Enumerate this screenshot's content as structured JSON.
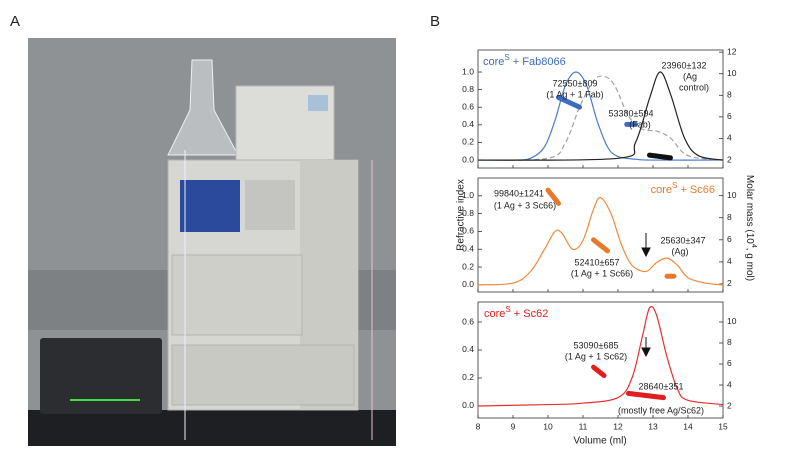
{
  "figure": {
    "panel_labels": [
      "A",
      "B"
    ],
    "xlabel": "Volume (ml)",
    "ylabel": "Refractive index",
    "y2label": [
      "Molar mass (10",
      "4",
      ", g mol)"
    ]
  },
  "chart_data": [
    {
      "type": "line",
      "title": [
        "core",
        "S",
        " + Fab8066"
      ],
      "title_color": "#3d6cc0",
      "xlim": [
        8,
        15
      ],
      "xticks": [
        8,
        9,
        10,
        11,
        12,
        13,
        14,
        15
      ],
      "ylim": [
        -0.09,
        1.25
      ],
      "yticks": [
        {
          "value": 0,
          "label": "0.0"
        },
        {
          "value": 0.2,
          "label": "0.2"
        },
        {
          "value": 0.4,
          "label": "0.4"
        },
        {
          "value": 0.6,
          "label": "0.6"
        },
        {
          "value": 0.8,
          "label": "0.8"
        },
        {
          "value": 1,
          "label": "1.0"
        }
      ],
      "y2lim": [
        1.26,
        12.2
      ],
      "y2ticks": [
        2,
        4,
        6,
        8,
        10,
        12
      ],
      "series": [
        {
          "color": "#4a7cc9",
          "x": [
            8,
            9,
            9.5,
            9.9,
            10.2,
            10.5,
            10.8,
            11.1,
            11.4,
            11.7,
            12,
            12.5,
            13,
            15
          ],
          "values": [
            0,
            0,
            0.02,
            0.15,
            0.45,
            0.85,
            1.0,
            0.85,
            0.45,
            0.15,
            0.04,
            0.01,
            0,
            0
          ]
        },
        {
          "color": "#a0a0a0",
          "dashed": true,
          "x": [
            8,
            10,
            10.5,
            10.9,
            11.3,
            11.6,
            11.9,
            12.3,
            12.7,
            13.1,
            13.5,
            14,
            15
          ],
          "values": [
            0,
            0.02,
            0.2,
            0.6,
            0.9,
            0.95,
            0.85,
            0.5,
            0.35,
            0.33,
            0.25,
            0.05,
            0
          ]
        },
        {
          "color": "#222222",
          "x": [
            8,
            12,
            12.5,
            12.9,
            13.2,
            13.5,
            13.9,
            14.3,
            15
          ],
          "values": [
            0,
            0.02,
            0.2,
            0.7,
            1.0,
            0.75,
            0.25,
            0.05,
            0
          ]
        },
        {
          "color": "#3d6cc0",
          "axis": "y2",
          "x": [
            10.3,
            10.9
          ],
          "values": [
            7.8,
            6.9
          ]
        },
        {
          "color": "#3d6cc0",
          "axis": "y2",
          "x": [
            12.25,
            12.5
          ],
          "values": [
            5.3,
            5.3
          ]
        },
        {
          "color": "#111111",
          "axis": "y2",
          "x": [
            12.9,
            13.5
          ],
          "values": [
            2.45,
            2.2
          ]
        }
      ],
      "annotations": [
        {
          "text": "72550±809",
          "color": "#3d6cc0"
        },
        {
          "text": "(1 Ag + 1 Fab)",
          "color": "#3d6cc0"
        },
        {
          "text": "53380±594",
          "color": "#3d6cc0"
        },
        {
          "text": "(Fab)",
          "color": "#3d6cc0"
        },
        {
          "text": "23960±132",
          "color": "#111111"
        },
        {
          "text": "(Ag",
          "color": "#111111"
        },
        {
          "text": "control)",
          "color": "#111111"
        }
      ]
    },
    {
      "type": "line",
      "title": [
        "core",
        "S",
        " + Sc66"
      ],
      "title_color": "#e8792a",
      "xlim": [
        8,
        15
      ],
      "xticks": [
        8,
        9,
        10,
        11,
        12,
        13,
        14,
        15
      ],
      "ylim": [
        -0.08,
        1.2
      ],
      "yticks": [
        {
          "value": 0,
          "label": "0.0"
        },
        {
          "value": 0.2,
          "label": "0.2"
        },
        {
          "value": 0.4,
          "label": "0.4"
        },
        {
          "value": 0.6,
          "label": "0.6"
        },
        {
          "value": 0.8,
          "label": "0.8"
        },
        {
          "value": 1,
          "label": "1.0"
        }
      ],
      "y2lim": [
        1.27,
        11.6
      ],
      "y2ticks": [
        2,
        4,
        6,
        8,
        10
      ],
      "series": [
        {
          "color": "#f08a3c",
          "x": [
            8,
            9,
            9.5,
            9.9,
            10.2,
            10.4,
            10.7,
            11,
            11.3,
            11.5,
            11.8,
            12.1,
            12.4,
            12.8,
            13.1,
            13.4,
            13.7,
            14,
            14.5,
            15
          ],
          "values": [
            0,
            0.02,
            0.15,
            0.4,
            0.6,
            0.58,
            0.4,
            0.5,
            0.85,
            0.98,
            0.8,
            0.45,
            0.22,
            0.15,
            0.25,
            0.3,
            0.22,
            0.08,
            0.02,
            0
          ]
        },
        {
          "color": "#e8792a",
          "axis": "y2",
          "x": [
            10.0,
            10.3
          ],
          "values": [
            10.5,
            9.3
          ]
        },
        {
          "color": "#e8792a",
          "axis": "y2",
          "x": [
            11.3,
            11.7
          ],
          "values": [
            6.0,
            5.0
          ]
        },
        {
          "color": "#e8792a",
          "axis": "y2",
          "x": [
            13.4,
            13.6
          ],
          "values": [
            2.7,
            2.7
          ]
        }
      ],
      "annotations": [
        {
          "text": "99840±1241",
          "color": "#e8792a"
        },
        {
          "text": "(1 Ag + 3 Sc66)",
          "color": "#e8792a"
        },
        {
          "text": "52410±657",
          "color": "#e8792a"
        },
        {
          "text": "(1 Ag + 1 Sc66)",
          "color": "#e8792a"
        },
        {
          "text": "25630±347",
          "color": "#e8792a"
        },
        {
          "text": "(Ag)",
          "color": "#e8792a"
        }
      ]
    },
    {
      "type": "line",
      "title": [
        "core",
        "S",
        " + Sc62"
      ],
      "title_color": "#e02020",
      "xlim": [
        8,
        15
      ],
      "xticks": [
        8,
        9,
        10,
        11,
        12,
        13,
        14,
        15
      ],
      "ylim": [
        -0.086,
        0.743
      ],
      "yticks": [
        {
          "value": 0,
          "label": "0.0"
        },
        {
          "value": 0.2,
          "label": "0.2"
        },
        {
          "value": 0.4,
          "label": "0.4"
        },
        {
          "value": 0.6,
          "label": "0.6"
        }
      ],
      "y2lim": [
        0.86,
        11.9
      ],
      "y2ticks": [
        2,
        4,
        6,
        8,
        10
      ],
      "series": [
        {
          "color": "#e83030",
          "x": [
            8,
            10,
            11,
            12,
            12.4,
            12.7,
            12.9,
            13.1,
            13.4,
            13.7,
            14,
            15
          ],
          "values": [
            0,
            0.01,
            0.02,
            0.06,
            0.2,
            0.5,
            0.7,
            0.65,
            0.35,
            0.12,
            0.04,
            0.01
          ]
        },
        {
          "color": "#e02020",
          "axis": "y2",
          "x": [
            11.3,
            11.6
          ],
          "values": [
            5.7,
            4.9
          ]
        },
        {
          "color": "#e02020",
          "axis": "y2",
          "x": [
            12.3,
            13.3
          ],
          "values": [
            3.2,
            2.8
          ]
        }
      ],
      "annotations": [
        {
          "text": "53090±685",
          "color": "#e02020"
        },
        {
          "text": "(1 Ag + 1 Sc62)",
          "color": "#e02020"
        },
        {
          "text": "28640±351",
          "color": "#e02020"
        },
        {
          "text": "(mostly free Ag/Sc62)",
          "color": "#e02020"
        }
      ]
    }
  ]
}
